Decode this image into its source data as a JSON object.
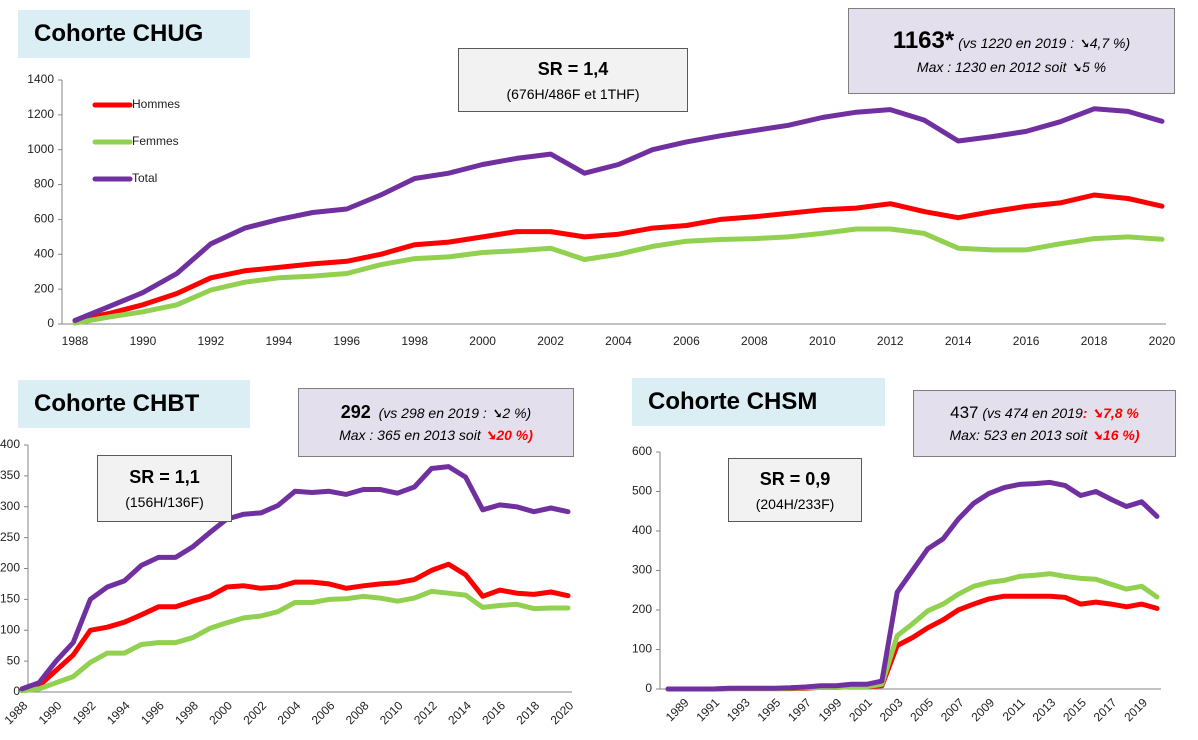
{
  "chart_data": [
    {
      "type": "line",
      "title": "Cohorte CHUG",
      "legend": "upper left",
      "sr_box": {
        "ratio": "SR = 1,4",
        "detail": "(676H/486F et 1THF)"
      },
      "info_box": {
        "line1": [
          "1163*",
          "(vs 1220 en 2019 : ➘4,7 %)"
        ],
        "line2": [
          "Max : 1230 en 2012 soit ➘5 %"
        ]
      },
      "categories": [
        "1988",
        null,
        "1990",
        null,
        "1992",
        null,
        "1994",
        null,
        "1996",
        null,
        "1998",
        null,
        "2000",
        null,
        "2002",
        null,
        "2004",
        null,
        "2006",
        null,
        "2008",
        null,
        "2010",
        null,
        "2012",
        null,
        "2014",
        null,
        "2016",
        null,
        "2018",
        null,
        "2020"
      ],
      "ylim": [
        0,
        1400
      ],
      "yticks": [
        0,
        200,
        400,
        600,
        800,
        1000,
        1200,
        1400
      ],
      "series": [
        {
          "name": "Hommes",
          "color": "#ff0000",
          "values": [
            20,
            60,
            110,
            175,
            265,
            305,
            325,
            345,
            360,
            400,
            455,
            470,
            500,
            530,
            530,
            500,
            515,
            550,
            565,
            600,
            615,
            635,
            655,
            665,
            690,
            645,
            610,
            645,
            675,
            695,
            740,
            720,
            676
          ]
        },
        {
          "name": "Femmes",
          "color": "#92d050",
          "values": [
            5,
            40,
            70,
            110,
            195,
            240,
            265,
            275,
            290,
            340,
            375,
            385,
            410,
            420,
            435,
            370,
            400,
            445,
            475,
            485,
            490,
            500,
            520,
            545,
            545,
            520,
            435,
            425,
            425,
            460,
            490,
            500,
            486
          ]
        },
        {
          "name": "Total",
          "color": "#7030a0",
          "values": [
            20,
            100,
            180,
            290,
            460,
            550,
            600,
            640,
            660,
            740,
            835,
            865,
            915,
            950,
            975,
            865,
            915,
            1000,
            1045,
            1080,
            1110,
            1140,
            1185,
            1215,
            1230,
            1170,
            1050,
            1075,
            1105,
            1160,
            1235,
            1220,
            1163
          ]
        }
      ]
    },
    {
      "type": "line",
      "title": "Cohorte CHBT",
      "sr_box": {
        "ratio": "SR = 1,1",
        "detail": "(156H/136F)"
      },
      "info_box": {
        "line1": [
          "292",
          "(vs 298 en 2019 : ➘2 %)"
        ],
        "line2": [
          "Max : 365 en 2013 soit ",
          "➘20 %)"
        ]
      },
      "categories": [
        "1988",
        null,
        "1990",
        null,
        "1992",
        null,
        "1994",
        null,
        "1996",
        null,
        "1998",
        null,
        "2000",
        null,
        "2002",
        null,
        "2004",
        null,
        "2006",
        null,
        "2008",
        null,
        "2010",
        null,
        "2012",
        null,
        "2014",
        null,
        "2016",
        null,
        "2018",
        null,
        "2020"
      ],
      "ylim": [
        0,
        400
      ],
      "yticks": [
        0,
        50,
        100,
        150,
        200,
        250,
        300,
        350,
        400
      ],
      "series": [
        {
          "name": "Hommes",
          "color": "#ff0000",
          "values": [
            3,
            10,
            35,
            60,
            100,
            105,
            113,
            125,
            138,
            138,
            147,
            155,
            170,
            172,
            168,
            170,
            178,
            178,
            175,
            168,
            172,
            175,
            177,
            182,
            197,
            207,
            190,
            155,
            165,
            160,
            158,
            162,
            156
          ]
        },
        {
          "name": "Femmes",
          "color": "#92d050",
          "values": [
            2,
            5,
            15,
            25,
            48,
            63,
            63,
            77,
            80,
            80,
            88,
            103,
            112,
            120,
            123,
            130,
            145,
            145,
            150,
            151,
            155,
            152,
            147,
            152,
            163,
            160,
            157,
            137,
            140,
            142,
            135,
            136,
            136
          ]
        },
        {
          "name": "Total",
          "color": "#7030a0",
          "values": [
            5,
            15,
            50,
            80,
            150,
            170,
            180,
            205,
            218,
            218,
            235,
            258,
            280,
            288,
            290,
            302,
            325,
            323,
            325,
            320,
            328,
            328,
            322,
            332,
            362,
            365,
            348,
            295,
            303,
            300,
            292,
            298,
            292
          ]
        }
      ]
    },
    {
      "type": "line",
      "title": "Cohorte CHSM",
      "sr_box": {
        "ratio": "SR = 0,9",
        "detail": "(204H/233F)"
      },
      "info_box": {
        "line1": [
          "437",
          "(vs 474 en 2019",
          ": ➘7,8 %"
        ],
        "line2": [
          "Max: 523 en 2013 soit ",
          "➘16 %)"
        ]
      },
      "categories": [
        null,
        "1989",
        null,
        "1991",
        null,
        "1993",
        null,
        "1995",
        null,
        "1997",
        null,
        "1999",
        null,
        "2001",
        null,
        "2003",
        null,
        "2005",
        null,
        "2007",
        null,
        "2009",
        null,
        "2011",
        null,
        "2013",
        null,
        "2015",
        null,
        "2017",
        null,
        "2019",
        null
      ],
      "ylim": [
        0,
        600
      ],
      "yticks": [
        0,
        100,
        200,
        300,
        400,
        500,
        600
      ],
      "series": [
        {
          "name": "Hommes",
          "color": "#ff0000",
          "values": [
            0,
            0,
            0,
            0,
            1,
            1,
            1,
            1,
            1,
            2,
            4,
            4,
            6,
            6,
            8,
            110,
            130,
            155,
            175,
            200,
            215,
            228,
            235,
            235,
            235,
            235,
            232,
            215,
            220,
            215,
            208,
            215,
            204
          ]
        },
        {
          "name": "Femmes",
          "color": "#92d050",
          "values": [
            0,
            0,
            0,
            0,
            1,
            1,
            1,
            1,
            2,
            3,
            4,
            4,
            6,
            6,
            12,
            135,
            165,
            198,
            215,
            240,
            260,
            270,
            275,
            285,
            288,
            292,
            285,
            280,
            278,
            265,
            253,
            260,
            233
          ]
        },
        {
          "name": "Total",
          "color": "#7030a0",
          "values": [
            0,
            0,
            0,
            0,
            2,
            2,
            2,
            2,
            3,
            5,
            8,
            8,
            12,
            12,
            20,
            245,
            300,
            355,
            380,
            430,
            470,
            495,
            510,
            518,
            520,
            523,
            515,
            490,
            500,
            480,
            462,
            474,
            437
          ]
        }
      ]
    }
  ]
}
